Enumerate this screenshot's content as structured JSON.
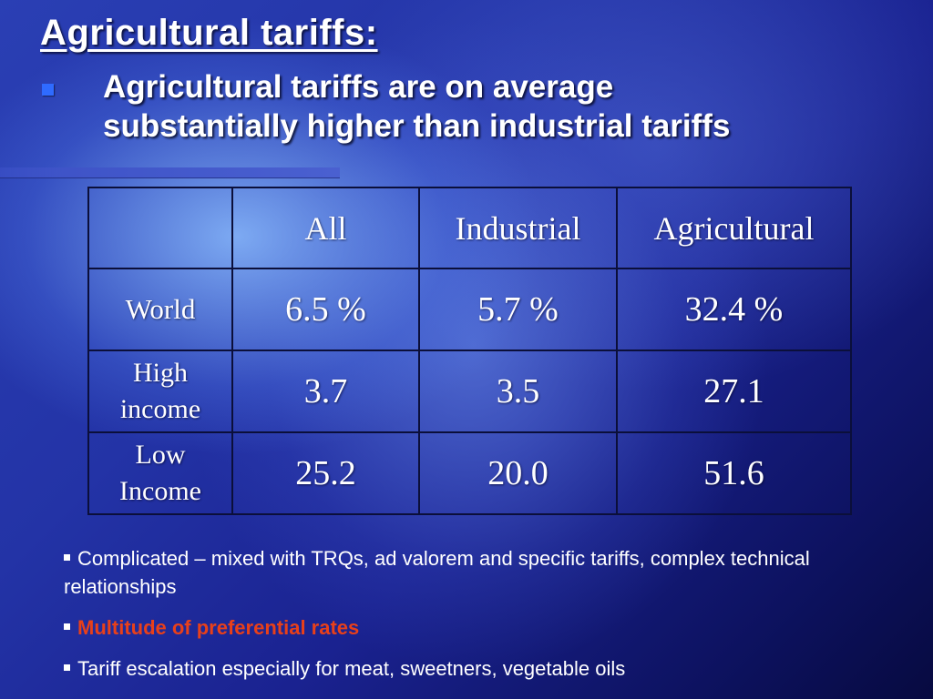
{
  "slide": {
    "title": "Agricultural tariffs:",
    "main_bullet": "Agricultural tariffs are on average substantially higher than industrial tariffs"
  },
  "table": {
    "header": [
      "",
      "All",
      "Industrial",
      "Agricultural"
    ],
    "rows": [
      {
        "label": "World",
        "values": [
          "6.5 %",
          "5.7 %",
          "32.4 %"
        ]
      },
      {
        "label_line1": "High",
        "label_line2": "income",
        "values": [
          "3.7",
          "3.5",
          "27.1"
        ]
      },
      {
        "label_line1": "Low",
        "label_line2": "Income",
        "values": [
          "25.2",
          "20.0",
          "51.6"
        ]
      }
    ]
  },
  "notes": [
    {
      "text": "Complicated – mixed with TRQs, ad valorem and specific tariffs, complex technical relationships"
    },
    {
      "text": "Multitude of preferential rates",
      "color": "#e8401a"
    },
    {
      "text": "Tariff escalation especially for meat, sweetners, vegetable oils"
    }
  ],
  "colors": {
    "bullet": "#2f6bff",
    "highlight_text": "#e8401a",
    "table_border": "#0b0f3a"
  }
}
